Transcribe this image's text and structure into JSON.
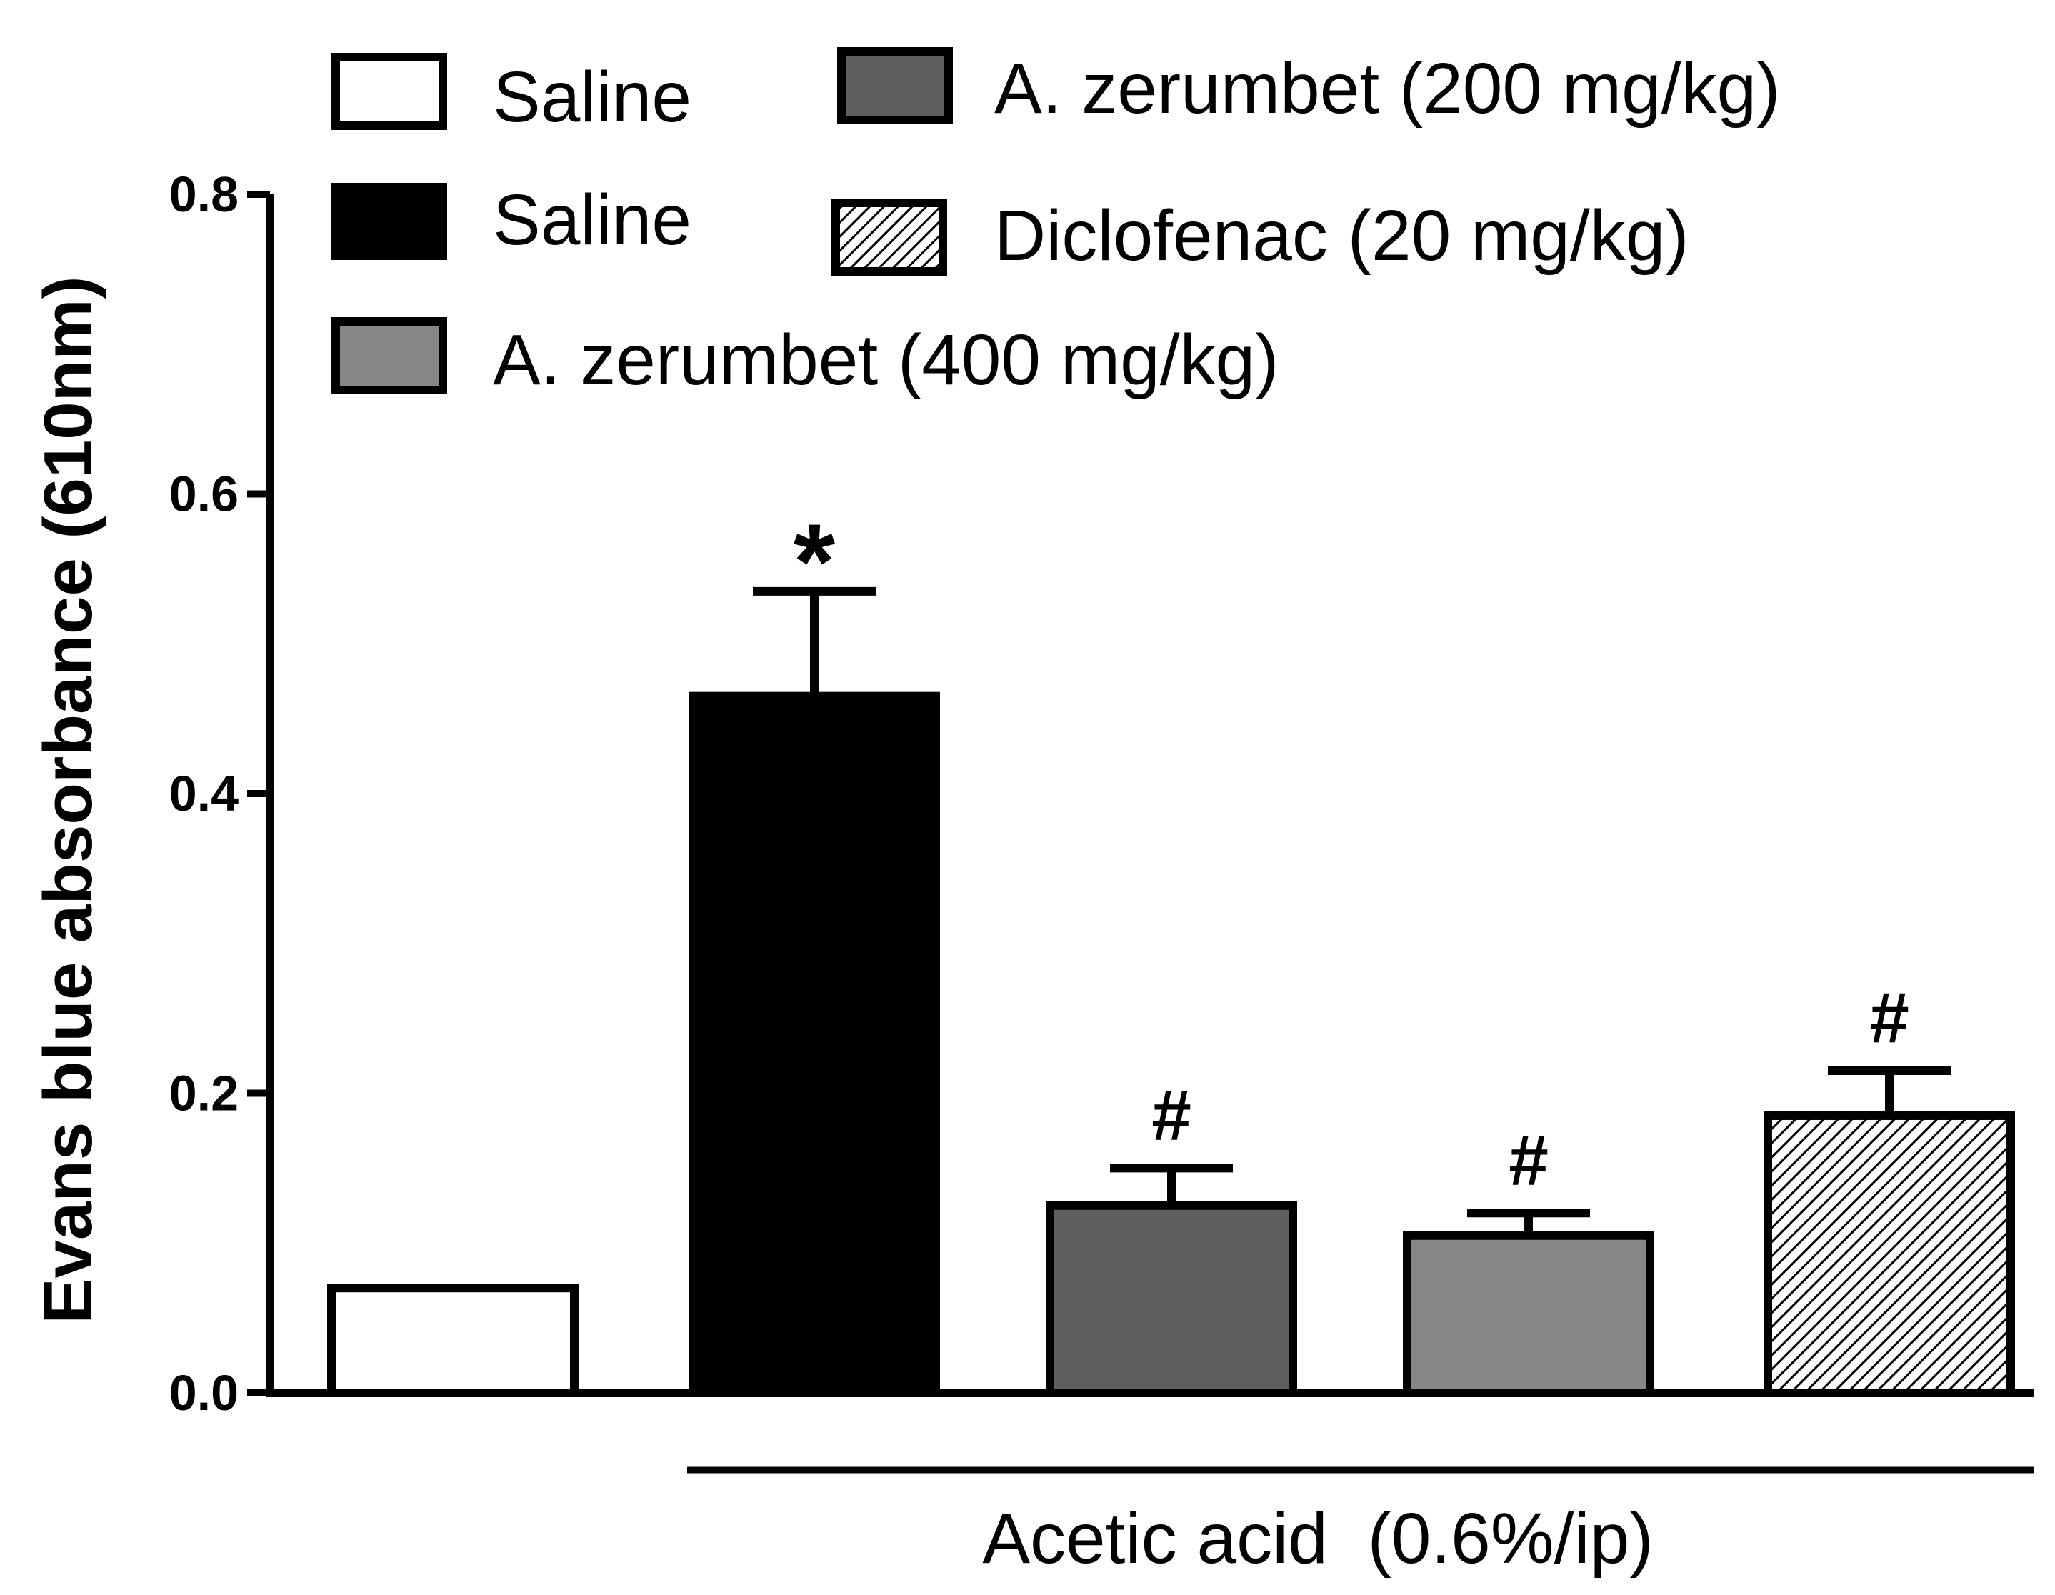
{
  "chart_data": {
    "type": "bar",
    "ylabel": "Evans blue absorbance (610nm)",
    "xlabel": "",
    "ylim": [
      0,
      0.8
    ],
    "yticks": [
      "0.0",
      "0.2",
      "0.4",
      "0.6",
      "0.8"
    ],
    "categories": [
      "Saline",
      "Saline",
      "A. zerumbet (200 mg/kg)",
      "A. zerumbet (400 mg/kg)",
      "Diclofenac (20 mg/kg)"
    ],
    "values": [
      0.07,
      0.465,
      0.125,
      0.105,
      0.185
    ],
    "errors": [
      0.0,
      0.07,
      0.025,
      0.015,
      0.03
    ],
    "fills": [
      "white",
      "#000000",
      "#5f5f5f",
      "#878787",
      "hatch"
    ],
    "annotations": [
      "",
      "*",
      "#",
      "#",
      "#"
    ],
    "legend": [
      {
        "label": "Saline",
        "fill": "white"
      },
      {
        "label": "Saline",
        "fill": "#000000"
      },
      {
        "label": "A. zerumbet (400 mg/kg)",
        "fill": "#878787"
      },
      {
        "label": "A. zerumbet (200 mg/kg)",
        "fill": "#5f5f5f"
      },
      {
        "label": "Diclofenac (20 mg/kg)",
        "fill": "hatch"
      }
    ],
    "group_label": "Acetic acid  (0.6%/ip)",
    "legend_position": "top",
    "grid": false
  }
}
